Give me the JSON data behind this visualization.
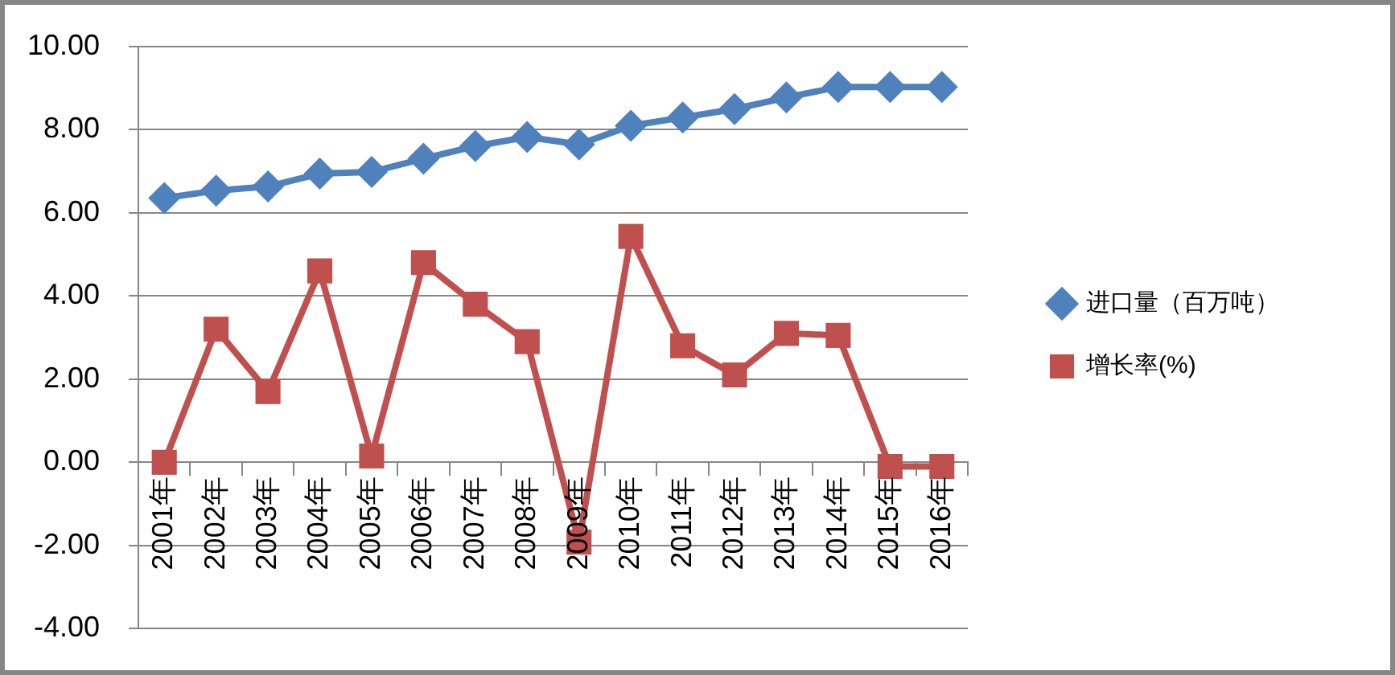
{
  "chart_data": {
    "type": "line",
    "categories": [
      "2001年",
      "2002年",
      "2003年",
      "2004年",
      "2005年",
      "2006年",
      "2007年",
      "2008年",
      "2009年",
      "2010年",
      "2011年",
      "2012年",
      "2013年",
      "2014年",
      "2015年",
      "2016年"
    ],
    "series": [
      {
        "name": "进口量（百万吨）",
        "color": "#4f81bd",
        "marker": "diamond",
        "values": [
          6.35,
          6.53,
          6.63,
          6.94,
          6.98,
          7.3,
          7.6,
          7.82,
          7.64,
          8.09,
          8.29,
          8.49,
          8.77,
          9.02,
          9.02,
          9.02
        ]
      },
      {
        "name": "增长率(%)",
        "color": "#c0504d",
        "marker": "square",
        "values": [
          0.0,
          3.2,
          1.7,
          4.6,
          0.15,
          4.8,
          3.8,
          2.9,
          -1.92,
          5.43,
          2.8,
          2.1,
          3.1,
          3.05,
          -0.1,
          -0.1
        ]
      }
    ],
    "ylim": [
      -4,
      10
    ],
    "yticks": [
      {
        "value": -4,
        "label": "-4.00"
      },
      {
        "value": -2,
        "label": "-2.00"
      },
      {
        "value": 0,
        "label": "0.00"
      },
      {
        "value": 2,
        "label": "2.00"
      },
      {
        "value": 4,
        "label": "4.00"
      },
      {
        "value": 6,
        "label": "6.00"
      },
      {
        "value": 8,
        "label": "8.00"
      },
      {
        "value": 10,
        "label": "10.00"
      }
    ],
    "grid": "y",
    "legend": "right"
  }
}
